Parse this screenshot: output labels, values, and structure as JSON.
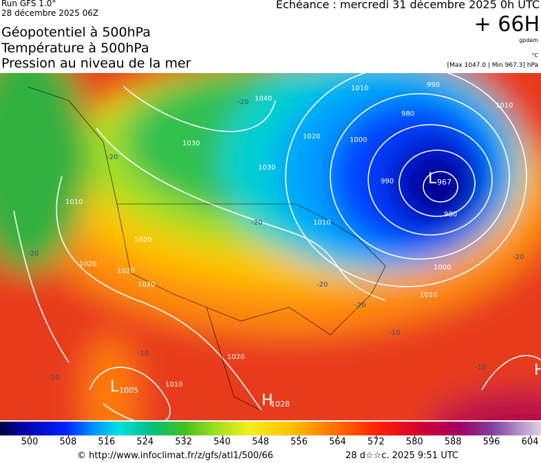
{
  "header": {
    "run": "Run GFS 1.0°",
    "date": "28 décembre 2025 06Z",
    "echeance": "Echéance : mercredi 31 décembre 2025 0h UTC",
    "lead": "+ 66H",
    "unit_gpdam": "gpdam",
    "unit_temp": "°C",
    "range": "[Max 1047.0 | Min 967.3] hPa",
    "titles": [
      "Géopotentiel à 500hPa",
      "Température à 500hPa",
      "Pression au niveau de la mer"
    ]
  },
  "map": {
    "centers": [
      {
        "letter": "L",
        "value": "967"
      },
      {
        "letter": "H",
        "value": "1028"
      },
      {
        "letter": "L",
        "value": "1005"
      },
      {
        "letter": "H",
        "value": null
      }
    ],
    "isobar_labels": [
      "1040",
      "1030",
      "1020",
      "1010",
      "1000",
      "990",
      "980",
      "980",
      "990",
      "1000",
      "1010",
      "1020",
      "1010",
      "1020",
      "1020",
      "1020",
      "1020",
      "1010",
      "1010",
      "1030",
      "1010"
    ],
    "temp_labels": [
      "-20",
      "-20",
      "-20",
      "-20",
      "-20",
      "-20",
      "-20",
      "-10",
      "-10",
      "-10",
      "-10"
    ]
  },
  "colorbar": {
    "ticks": [
      500,
      508,
      516,
      524,
      532,
      540,
      548,
      556,
      564,
      572,
      580,
      588,
      596,
      604
    ]
  },
  "footer": {
    "source": "© http://www.infoclimat.fr/z/gfs/atl1/500/66",
    "date": "28 d☆☆c. 2025  9:51 UTC"
  }
}
